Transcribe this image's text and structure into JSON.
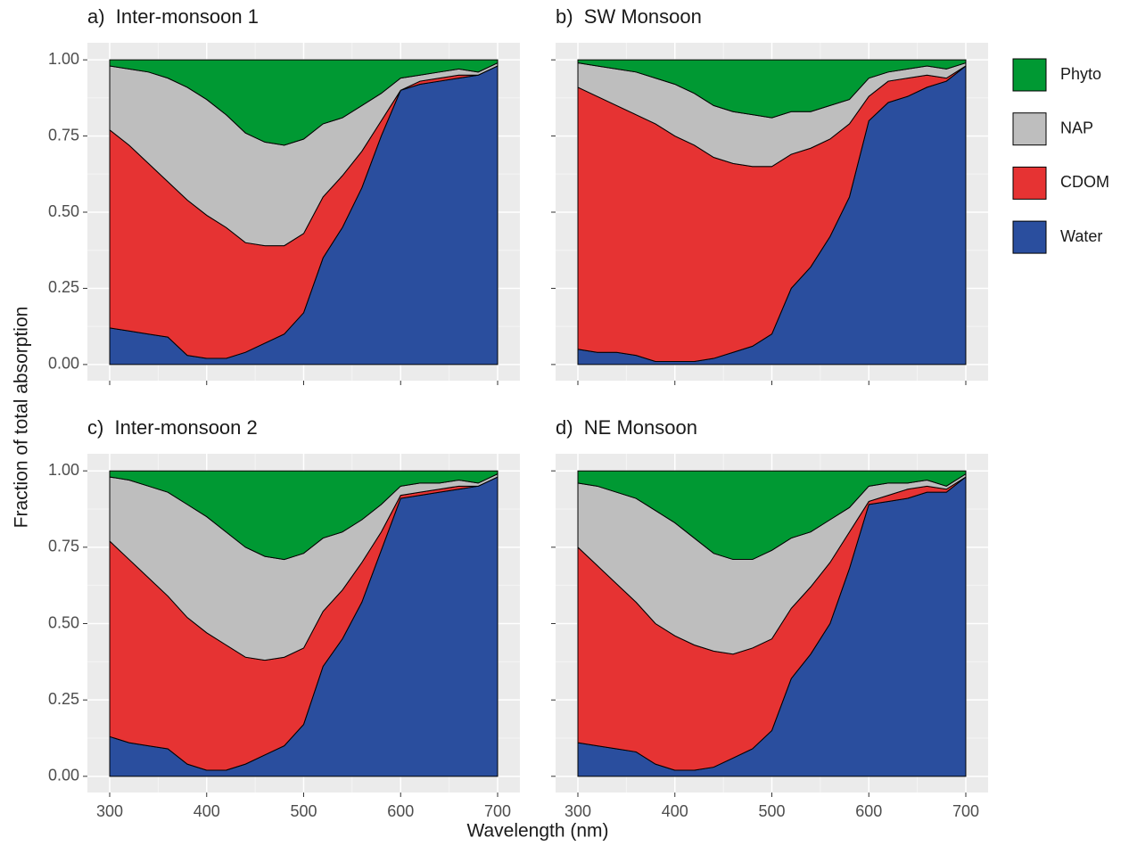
{
  "figure": {
    "xlabel": "Wavelength (nm)",
    "ylabel": "Fraction of total absorption"
  },
  "chart_data": [
    {
      "type": "area",
      "stacked": true,
      "title": "a)  Inter-monsoon 1",
      "x": [
        300,
        320,
        340,
        360,
        380,
        400,
        420,
        440,
        460,
        480,
        500,
        520,
        540,
        560,
        580,
        600,
        620,
        640,
        660,
        680,
        700
      ],
      "xlim": [
        277,
        723
      ],
      "ylim": [
        -0.053,
        1.056
      ],
      "xticks": [
        300,
        400,
        500,
        600,
        700
      ],
      "yticks": [
        {
          "value": 0,
          "label": "0.00"
        },
        {
          "value": 0.25,
          "label": "0.25"
        },
        {
          "value": 0.5,
          "label": "0.50"
        },
        {
          "value": 0.75,
          "label": "0.75"
        },
        {
          "value": 1,
          "label": "1.00"
        }
      ],
      "series": [
        {
          "name": "Water",
          "color": "#2a4e9e",
          "values": [
            0.12,
            0.11,
            0.1,
            0.09,
            0.03,
            0.02,
            0.02,
            0.04,
            0.07,
            0.1,
            0.17,
            0.35,
            0.45,
            0.58,
            0.75,
            0.9,
            0.92,
            0.93,
            0.94,
            0.95,
            0.98
          ]
        },
        {
          "name": "CDOM",
          "color": "#e63333",
          "values": [
            0.65,
            0.61,
            0.56,
            0.51,
            0.51,
            0.47,
            0.43,
            0.36,
            0.32,
            0.29,
            0.26,
            0.2,
            0.17,
            0.12,
            0.05,
            0.0,
            0.01,
            0.01,
            0.01,
            0.0,
            0.0
          ]
        },
        {
          "name": "NAP",
          "color": "#bebebe",
          "values": [
            0.21,
            0.25,
            0.3,
            0.34,
            0.37,
            0.38,
            0.37,
            0.36,
            0.34,
            0.33,
            0.31,
            0.24,
            0.19,
            0.15,
            0.09,
            0.04,
            0.02,
            0.02,
            0.02,
            0.01,
            0.01
          ]
        },
        {
          "name": "Phyto",
          "color": "#009933",
          "values": [
            0.02,
            0.03,
            0.04,
            0.06,
            0.09,
            0.13,
            0.18,
            0.24,
            0.27,
            0.28,
            0.26,
            0.21,
            0.19,
            0.15,
            0.11,
            0.06,
            0.05,
            0.04,
            0.03,
            0.04,
            0.01
          ]
        }
      ]
    },
    {
      "type": "area",
      "stacked": true,
      "title": "b)  SW Monsoon",
      "x": [
        300,
        320,
        340,
        360,
        380,
        400,
        420,
        440,
        460,
        480,
        500,
        520,
        540,
        560,
        580,
        600,
        620,
        640,
        660,
        680,
        700
      ],
      "xlim": [
        277,
        723
      ],
      "ylim": [
        -0.053,
        1.056
      ],
      "xticks": [
        300,
        400,
        500,
        600,
        700
      ],
      "yticks": [
        {
          "value": 0,
          "label": "0.00"
        },
        {
          "value": 0.25,
          "label": "0.25"
        },
        {
          "value": 0.5,
          "label": "0.50"
        },
        {
          "value": 0.75,
          "label": "0.75"
        },
        {
          "value": 1,
          "label": "1.00"
        }
      ],
      "series": [
        {
          "name": "Water",
          "color": "#2a4e9e",
          "values": [
            0.05,
            0.04,
            0.04,
            0.03,
            0.01,
            0.01,
            0.01,
            0.02,
            0.04,
            0.06,
            0.1,
            0.25,
            0.32,
            0.42,
            0.55,
            0.8,
            0.86,
            0.88,
            0.91,
            0.93,
            0.98
          ]
        },
        {
          "name": "CDOM",
          "color": "#e63333",
          "values": [
            0.86,
            0.84,
            0.81,
            0.79,
            0.78,
            0.74,
            0.71,
            0.66,
            0.62,
            0.59,
            0.55,
            0.44,
            0.39,
            0.32,
            0.24,
            0.08,
            0.07,
            0.06,
            0.04,
            0.01,
            0.0
          ]
        },
        {
          "name": "NAP",
          "color": "#bebebe",
          "values": [
            0.08,
            0.1,
            0.12,
            0.14,
            0.15,
            0.17,
            0.17,
            0.17,
            0.17,
            0.17,
            0.16,
            0.14,
            0.12,
            0.11,
            0.08,
            0.06,
            0.03,
            0.03,
            0.03,
            0.03,
            0.01
          ]
        },
        {
          "name": "Phyto",
          "color": "#009933",
          "values": [
            0.01,
            0.02,
            0.03,
            0.04,
            0.06,
            0.08,
            0.11,
            0.15,
            0.17,
            0.18,
            0.19,
            0.17,
            0.17,
            0.15,
            0.13,
            0.06,
            0.04,
            0.03,
            0.02,
            0.03,
            0.01
          ]
        }
      ]
    },
    {
      "type": "area",
      "stacked": true,
      "title": "c)  Inter-monsoon 2",
      "x": [
        300,
        320,
        340,
        360,
        380,
        400,
        420,
        440,
        460,
        480,
        500,
        520,
        540,
        560,
        580,
        600,
        620,
        640,
        660,
        680,
        700
      ],
      "xlim": [
        277,
        723
      ],
      "ylim": [
        -0.053,
        1.056
      ],
      "xticks": [
        300,
        400,
        500,
        600,
        700
      ],
      "yticks": [
        {
          "value": 0,
          "label": "0.00"
        },
        {
          "value": 0.25,
          "label": "0.25"
        },
        {
          "value": 0.5,
          "label": "0.50"
        },
        {
          "value": 0.75,
          "label": "0.75"
        },
        {
          "value": 1,
          "label": "1.00"
        }
      ],
      "series": [
        {
          "name": "Water",
          "color": "#2a4e9e",
          "values": [
            0.13,
            0.11,
            0.1,
            0.09,
            0.04,
            0.02,
            0.02,
            0.04,
            0.07,
            0.1,
            0.17,
            0.36,
            0.45,
            0.57,
            0.74,
            0.91,
            0.92,
            0.93,
            0.94,
            0.95,
            0.98
          ]
        },
        {
          "name": "CDOM",
          "color": "#e63333",
          "values": [
            0.64,
            0.6,
            0.55,
            0.5,
            0.48,
            0.45,
            0.41,
            0.35,
            0.31,
            0.29,
            0.25,
            0.18,
            0.16,
            0.13,
            0.06,
            0.01,
            0.01,
            0.01,
            0.01,
            0.0,
            0.0
          ]
        },
        {
          "name": "NAP",
          "color": "#bebebe",
          "values": [
            0.21,
            0.26,
            0.3,
            0.34,
            0.37,
            0.38,
            0.37,
            0.36,
            0.34,
            0.32,
            0.31,
            0.24,
            0.19,
            0.14,
            0.09,
            0.03,
            0.03,
            0.02,
            0.02,
            0.01,
            0.01
          ]
        },
        {
          "name": "Phyto",
          "color": "#009933",
          "values": [
            0.02,
            0.03,
            0.05,
            0.07,
            0.11,
            0.15,
            0.2,
            0.25,
            0.28,
            0.29,
            0.27,
            0.22,
            0.2,
            0.16,
            0.11,
            0.05,
            0.04,
            0.04,
            0.03,
            0.04,
            0.01
          ]
        }
      ]
    },
    {
      "type": "area",
      "stacked": true,
      "title": "d)  NE Monsoon",
      "x": [
        300,
        320,
        340,
        360,
        380,
        400,
        420,
        440,
        460,
        480,
        500,
        520,
        540,
        560,
        580,
        600,
        620,
        640,
        660,
        680,
        700
      ],
      "xlim": [
        277,
        723
      ],
      "ylim": [
        -0.053,
        1.056
      ],
      "xticks": [
        300,
        400,
        500,
        600,
        700
      ],
      "yticks": [
        {
          "value": 0,
          "label": "0.00"
        },
        {
          "value": 0.25,
          "label": "0.25"
        },
        {
          "value": 0.5,
          "label": "0.50"
        },
        {
          "value": 0.75,
          "label": "0.75"
        },
        {
          "value": 1,
          "label": "1.00"
        }
      ],
      "series": [
        {
          "name": "Water",
          "color": "#2a4e9e",
          "values": [
            0.11,
            0.1,
            0.09,
            0.08,
            0.04,
            0.02,
            0.02,
            0.03,
            0.06,
            0.09,
            0.15,
            0.32,
            0.4,
            0.5,
            0.68,
            0.89,
            0.9,
            0.91,
            0.93,
            0.93,
            0.98
          ]
        },
        {
          "name": "CDOM",
          "color": "#e63333",
          "values": [
            0.64,
            0.59,
            0.54,
            0.49,
            0.46,
            0.44,
            0.41,
            0.38,
            0.34,
            0.33,
            0.3,
            0.23,
            0.22,
            0.2,
            0.12,
            0.01,
            0.02,
            0.03,
            0.02,
            0.01,
            0.0
          ]
        },
        {
          "name": "NAP",
          "color": "#bebebe",
          "values": [
            0.21,
            0.26,
            0.3,
            0.34,
            0.37,
            0.37,
            0.35,
            0.32,
            0.31,
            0.29,
            0.29,
            0.23,
            0.18,
            0.14,
            0.08,
            0.05,
            0.04,
            0.02,
            0.02,
            0.01,
            0.01
          ]
        },
        {
          "name": "Phyto",
          "color": "#009933",
          "values": [
            0.04,
            0.05,
            0.07,
            0.09,
            0.13,
            0.17,
            0.22,
            0.27,
            0.29,
            0.29,
            0.26,
            0.22,
            0.2,
            0.16,
            0.12,
            0.05,
            0.04,
            0.04,
            0.03,
            0.05,
            0.01
          ]
        }
      ]
    }
  ]
}
